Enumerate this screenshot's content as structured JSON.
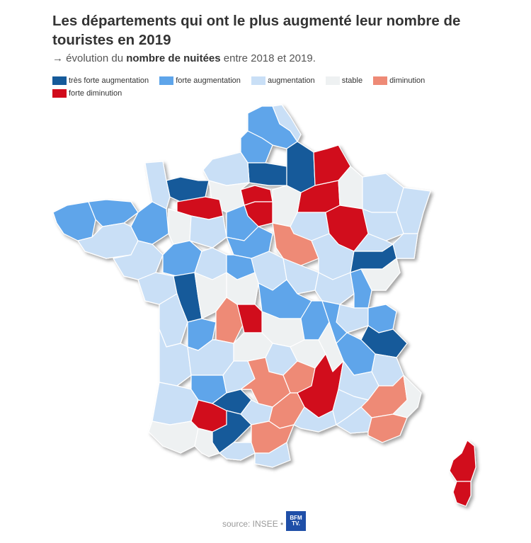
{
  "title": "Les départements qui ont le plus augmenté leur nombre de touristes en 2019",
  "subtitle": {
    "arrow": "→",
    "before": " évolution du ",
    "bold": "nombre de nuitées",
    "after": " entre 2018 et 2019."
  },
  "legend": [
    {
      "label": "très forte augmentation",
      "color": "#155a9a"
    },
    {
      "label": "forte augmentation",
      "color": "#5ea5ea"
    },
    {
      "label": "augmentation",
      "color": "#c9dff6"
    },
    {
      "label": "stable",
      "color": "#eef1f2"
    },
    {
      "label": "diminution",
      "color": "#ee8a76"
    },
    {
      "label": "forte diminution",
      "color": "#d10a1b"
    }
  ],
  "source": "source: INSEE •",
  "logo": {
    "line1": "BFM",
    "line2": "TV."
  }
}
